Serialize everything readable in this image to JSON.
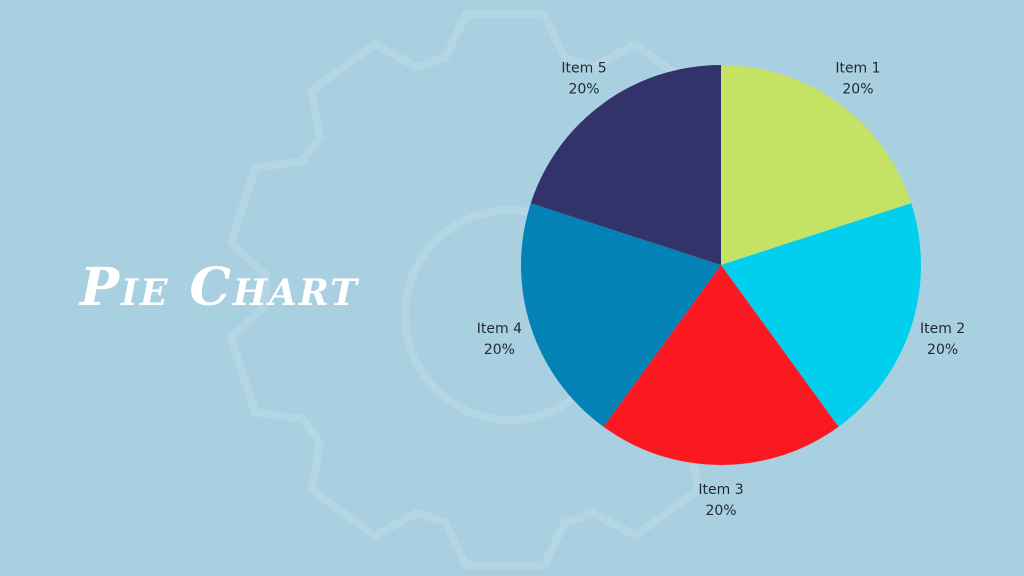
{
  "title": "Pie Chart",
  "background_color": "#a9d0e0",
  "chart_data": {
    "type": "pie",
    "start_angle": "top",
    "direction": "clockwise",
    "slices": [
      {
        "label": "Item 1",
        "value": 20,
        "display": "20%",
        "color": "#c5e264"
      },
      {
        "label": "Item 2",
        "value": 20,
        "display": "20%",
        "color": "#00d0ee"
      },
      {
        "label": "Item 3",
        "value": 20,
        "display": "20%",
        "color": "#fc1821"
      },
      {
        "label": "Item 4",
        "value": 20,
        "display": "20%",
        "color": "#0582b5"
      },
      {
        "label": "Item 5",
        "value": 20,
        "display": "20%",
        "color": "#32336b"
      }
    ]
  }
}
